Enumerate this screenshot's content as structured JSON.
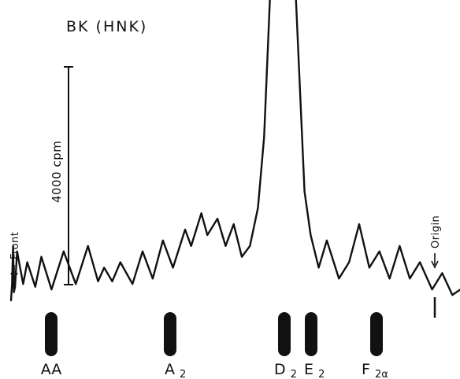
{
  "chart_data": {
    "type": "line",
    "title": "BK (HNK)",
    "scale_bar": {
      "label": "4000 cpm",
      "value": 4000,
      "unit": "cpm"
    },
    "markers": {
      "left": "Front",
      "right": "Origin"
    },
    "standards": [
      {
        "main": "AA",
        "sub": ""
      },
      {
        "main": "A",
        "sub": "2"
      },
      {
        "main": "D",
        "sub": "2"
      },
      {
        "main": "E",
        "sub": "2"
      },
      {
        "main": "F",
        "sub": "2α"
      }
    ],
    "series": [
      {
        "values": [
          [
            0,
            0
          ],
          [
            0.05,
            300
          ],
          [
            0.1,
            1000
          ],
          [
            0.14,
            150
          ],
          [
            0.2,
            250
          ],
          [
            0.3,
            900
          ],
          [
            0.6,
            300
          ],
          [
            0.8,
            700
          ],
          [
            1.2,
            250
          ],
          [
            1.5,
            800
          ],
          [
            2.0,
            200
          ],
          [
            2.6,
            900
          ],
          [
            3.2,
            300
          ],
          [
            3.8,
            1000
          ],
          [
            4.3,
            350
          ],
          [
            4.6,
            600
          ],
          [
            5.0,
            350
          ],
          [
            5.4,
            700
          ],
          [
            6.0,
            300
          ],
          [
            6.5,
            900
          ],
          [
            7.0,
            400
          ],
          [
            7.5,
            1100
          ],
          [
            8.0,
            600
          ],
          [
            8.6,
            1300
          ],
          [
            8.9,
            1000
          ],
          [
            9.4,
            1600
          ],
          [
            9.7,
            1200
          ],
          [
            10.2,
            1500
          ],
          [
            10.6,
            1000
          ],
          [
            11.0,
            1400
          ],
          [
            11.4,
            800
          ],
          [
            11.8,
            1000
          ],
          [
            12.2,
            1700
          ],
          [
            12.5,
            3000
          ],
          [
            12.9,
            6500
          ],
          [
            13.2,
            8400
          ],
          [
            13.45,
            10800
          ],
          [
            13.6,
            9000
          ],
          [
            13.9,
            7000
          ],
          [
            14.2,
            4500
          ],
          [
            14.5,
            2000
          ],
          [
            14.8,
            1200
          ],
          [
            15.2,
            600
          ],
          [
            15.6,
            1100
          ],
          [
            16.2,
            400
          ],
          [
            16.7,
            700
          ],
          [
            17.2,
            1400
          ],
          [
            17.7,
            600
          ],
          [
            18.2,
            900
          ],
          [
            18.7,
            400
          ],
          [
            19.2,
            1000
          ],
          [
            19.7,
            400
          ],
          [
            20.2,
            700
          ],
          [
            20.8,
            200
          ],
          [
            21.3,
            500
          ],
          [
            21.8,
            100
          ],
          [
            22.2,
            200
          ]
        ]
      }
    ]
  }
}
